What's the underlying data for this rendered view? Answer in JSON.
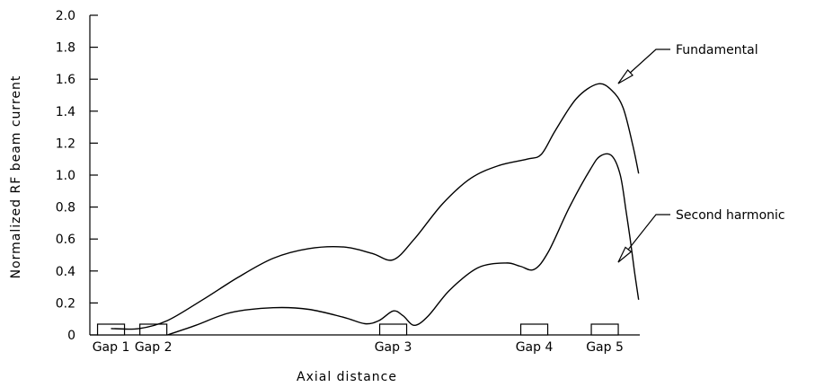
{
  "chart_data": {
    "type": "line",
    "title": "",
    "xlabel": "Axial distance",
    "ylabel": "Normalized RF beam current",
    "ylim": [
      0,
      2.0
    ],
    "yticks": [
      "0",
      "0.2",
      "0.4",
      "0.6",
      "0.8",
      "1.0",
      "1.2",
      "1.4",
      "1.6",
      "1.8",
      "2.0"
    ],
    "gaps": [
      {
        "label": "Gap 1",
        "center": 0.15
      },
      {
        "label": "Gap 2",
        "center": 0.45
      },
      {
        "label": "Gap 3",
        "center": 2.15
      },
      {
        "label": "Gap 4",
        "center": 3.15
      },
      {
        "label": "Gap 5",
        "center": 3.65
      }
    ],
    "series": [
      {
        "name": "Fundamental",
        "x": [
          0.15,
          0.35,
          0.55,
          0.8,
          1.05,
          1.3,
          1.55,
          1.8,
          2.0,
          2.15,
          2.3,
          2.5,
          2.7,
          2.9,
          3.1,
          3.2,
          3.3,
          3.45,
          3.6,
          3.7,
          3.78,
          3.85,
          3.89
        ],
        "y": [
          0.04,
          0.04,
          0.09,
          0.22,
          0.36,
          0.48,
          0.54,
          0.55,
          0.51,
          0.47,
          0.6,
          0.82,
          0.98,
          1.06,
          1.1,
          1.13,
          1.28,
          1.48,
          1.57,
          1.53,
          1.42,
          1.18,
          1.01
        ]
      },
      {
        "name": "Second harmonic",
        "x": [
          0.55,
          0.75,
          1.0,
          1.3,
          1.55,
          1.8,
          1.95,
          2.05,
          2.15,
          2.22,
          2.3,
          2.4,
          2.55,
          2.75,
          2.95,
          3.05,
          3.15,
          3.25,
          3.4,
          3.55,
          3.62,
          3.7,
          3.76,
          3.8,
          3.83,
          3.86,
          3.89
        ],
        "y": [
          0.0,
          0.06,
          0.14,
          0.17,
          0.16,
          0.11,
          0.07,
          0.09,
          0.15,
          0.12,
          0.06,
          0.12,
          0.28,
          0.42,
          0.45,
          0.43,
          0.41,
          0.52,
          0.8,
          1.04,
          1.12,
          1.12,
          1.0,
          0.78,
          0.6,
          0.4,
          0.22
        ]
      }
    ],
    "annotations": [
      {
        "text": "Fundamental",
        "series": "Fundamental"
      },
      {
        "text": "Second harmonic",
        "series": "Second harmonic"
      }
    ],
    "grid": false,
    "legend": "none"
  }
}
